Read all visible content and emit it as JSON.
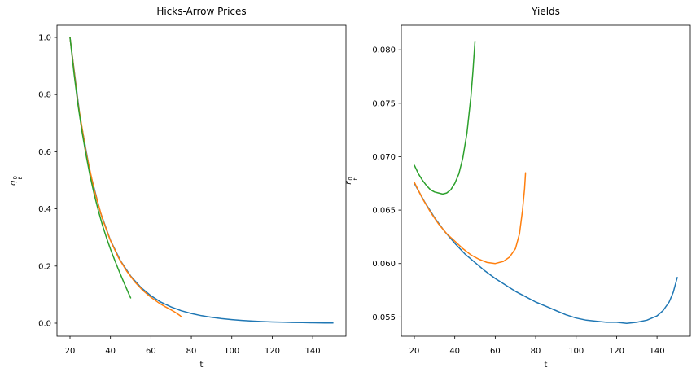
{
  "figure": {
    "background": "#ffffff"
  },
  "colors": {
    "blue": "#1f77b4",
    "orange": "#ff7f0e",
    "green": "#2ca02c",
    "spine": "#000000",
    "text": "#000000"
  },
  "chart_data": [
    {
      "type": "line",
      "title": "Hicks-Arrow Prices",
      "xlabel": "t",
      "ylabel": "q_t^0",
      "ylabel_parts": {
        "letter": "q",
        "sup": "0",
        "sub": "t"
      },
      "grid": false,
      "legend": "none",
      "xlim": [
        13.56,
        156.46
      ],
      "ylim": [
        -0.0456,
        1.0427
      ],
      "xticks": [
        20,
        40,
        60,
        80,
        100,
        120,
        140
      ],
      "xtick_labels": [
        "20",
        "40",
        "60",
        "80",
        "100",
        "120",
        "140"
      ],
      "yticks": [
        0.0,
        0.2,
        0.4,
        0.6,
        0.8,
        1.0
      ],
      "ytick_labels": [
        "0.0",
        "0.2",
        "0.4",
        "0.6",
        "0.8",
        "1.0"
      ],
      "series": [
        {
          "name": "blue-to-t150",
          "color": "#1f77b4",
          "x": [
            20,
            25,
            30,
            35,
            40,
            45,
            50,
            55,
            60,
            65,
            70,
            75,
            80,
            85,
            90,
            95,
            100,
            105,
            110,
            115,
            120,
            125,
            130,
            135,
            140,
            143,
            146,
            148,
            150
          ],
          "y": [
            1.0,
            0.7196,
            0.5257,
            0.3886,
            0.2899,
            0.2181,
            0.1648,
            0.1255,
            0.0959,
            0.0735,
            0.0567,
            0.0437,
            0.0339,
            0.0263,
            0.0204,
            0.0159,
            0.0124,
            0.0096,
            0.0073,
            0.0056,
            0.0043,
            0.0033,
            0.0025,
            0.0019,
            0.0013,
            0.0011,
            0.0008,
            0.0007,
            0.0005
          ]
        },
        {
          "name": "orange-to-t75",
          "color": "#ff7f0e",
          "x": [
            20,
            24,
            28,
            32,
            36,
            40,
            44,
            48,
            52,
            56,
            60,
            64,
            67,
            70,
            72,
            73.5,
            74.5,
            75
          ],
          "y": [
            1.0,
            0.7677,
            0.5955,
            0.4656,
            0.3661,
            0.2888,
            0.2291,
            0.1822,
            0.1448,
            0.1149,
            0.0907,
            0.0707,
            0.0579,
            0.0464,
            0.0382,
            0.0309,
            0.0259,
            0.0231
          ]
        },
        {
          "name": "green-to-t50",
          "color": "#2ca02c",
          "x": [
            20,
            22,
            24,
            26,
            28,
            30,
            32,
            34,
            36,
            38,
            40,
            42,
            44,
            46,
            48,
            49,
            50
          ],
          "y": [
            1.0,
            0.8721,
            0.7625,
            0.6678,
            0.5856,
            0.5133,
            0.4497,
            0.3941,
            0.3445,
            0.2999,
            0.2592,
            0.2221,
            0.1868,
            0.153,
            0.1201,
            0.1041,
            0.0885
          ]
        }
      ]
    },
    {
      "type": "line",
      "title": "Yields",
      "xlabel": "t",
      "ylabel": "r_t^0",
      "ylabel_parts": {
        "letter": "r",
        "sup": "0",
        "sub": "t"
      },
      "grid": false,
      "legend": "none",
      "xlim": [
        13.56,
        156.46
      ],
      "ylim": [
        0.0532,
        0.0823
      ],
      "xticks": [
        20,
        40,
        60,
        80,
        100,
        120,
        140
      ],
      "xtick_labels": [
        "20",
        "40",
        "60",
        "80",
        "100",
        "120",
        "140"
      ],
      "yticks": [
        0.055,
        0.06,
        0.065,
        0.07,
        0.075,
        0.08
      ],
      "ytick_labels": [
        "0.055",
        "0.060",
        "0.065",
        "0.070",
        "0.075",
        "0.080"
      ],
      "series": [
        {
          "name": "blue-to-t150",
          "color": "#1f77b4",
          "x": [
            20,
            25,
            30,
            35,
            40,
            45,
            50,
            55,
            60,
            65,
            70,
            75,
            80,
            85,
            90,
            95,
            100,
            105,
            110,
            115,
            120,
            125,
            130,
            135,
            140,
            143,
            146,
            148,
            150
          ],
          "y": [
            0.0675,
            0.0658,
            0.0643,
            0.063,
            0.0619,
            0.0609,
            0.0601,
            0.0593,
            0.0586,
            0.058,
            0.0574,
            0.0569,
            0.0564,
            0.056,
            0.0556,
            0.0552,
            0.0549,
            0.0547,
            0.0546,
            0.0545,
            0.0545,
            0.0544,
            0.0545,
            0.0547,
            0.0551,
            0.0556,
            0.0564,
            0.0573,
            0.0587
          ]
        },
        {
          "name": "orange-to-t75",
          "color": "#ff7f0e",
          "x": [
            20,
            24,
            28,
            32,
            36,
            40,
            44,
            48,
            52,
            56,
            60,
            64,
            67,
            70,
            72,
            73.5,
            74.5,
            75
          ],
          "y": [
            0.0676,
            0.0661,
            0.0648,
            0.0637,
            0.0628,
            0.0621,
            0.0614,
            0.0608,
            0.0604,
            0.0601,
            0.06,
            0.0602,
            0.0606,
            0.0614,
            0.0628,
            0.065,
            0.067,
            0.0685
          ]
        },
        {
          "name": "green-to-t50",
          "color": "#2ca02c",
          "x": [
            20,
            22,
            24,
            26,
            28,
            30,
            32,
            34,
            36,
            38,
            40,
            42,
            44,
            46,
            48,
            49,
            50
          ],
          "y": [
            0.0692,
            0.0684,
            0.0678,
            0.0673,
            0.0669,
            0.0667,
            0.0666,
            0.0665,
            0.0666,
            0.0669,
            0.0675,
            0.0684,
            0.0699,
            0.0722,
            0.0757,
            0.078,
            0.0808
          ]
        }
      ]
    }
  ]
}
